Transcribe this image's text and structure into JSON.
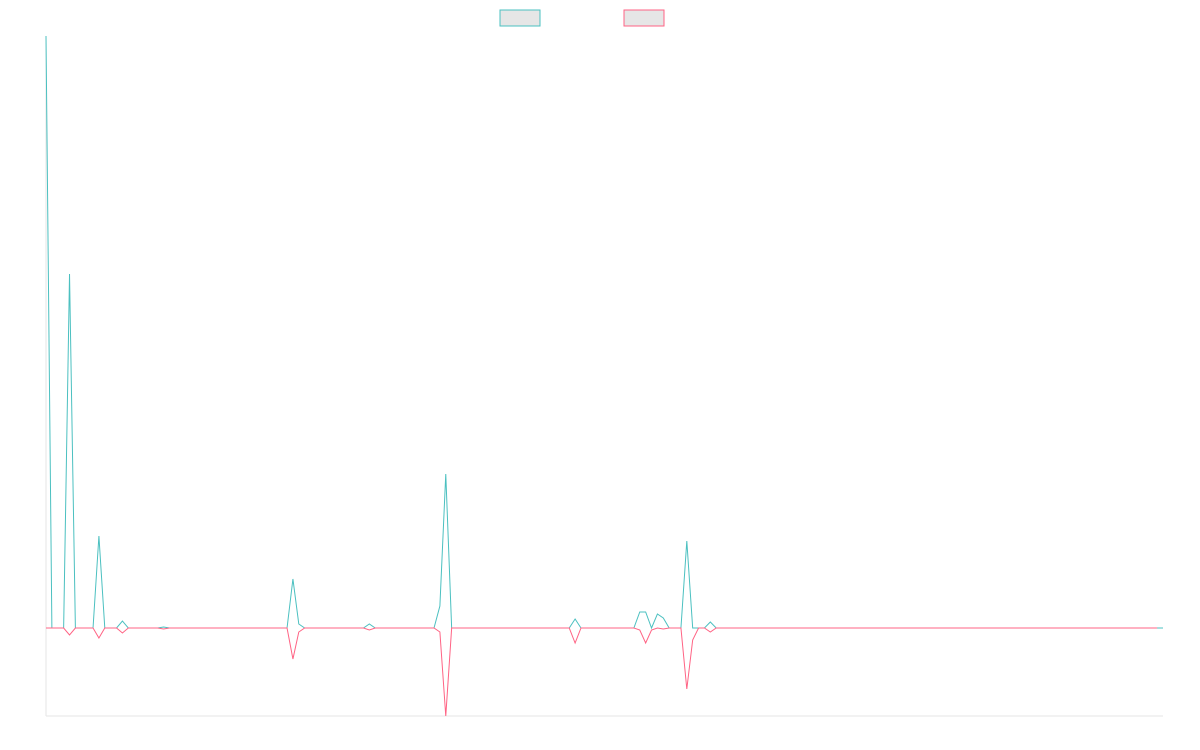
{
  "chart_data": {
    "type": "line",
    "title": "",
    "xlabel": "",
    "ylabel": "",
    "grid": false,
    "legend": {
      "placement": "top-center",
      "entries": [
        {
          "name": "",
          "color": "#4bc0c0",
          "fill": "#e6e6e6"
        },
        {
          "name": "",
          "color": "#ff6384",
          "fill": "#e6e6e6"
        }
      ]
    },
    "ylim": [
      -88,
      592
    ],
    "series": [
      {
        "name": "",
        "color": "#4bc0c0",
        "values": [
          592,
          0,
          0,
          0,
          354,
          0,
          0,
          0,
          0,
          92,
          0,
          0,
          0,
          7,
          0,
          0,
          0,
          0,
          0,
          0,
          1,
          0,
          0,
          0,
          0,
          0,
          0,
          0,
          0,
          0,
          0,
          0,
          0,
          0,
          0,
          0,
          0,
          0,
          0,
          0,
          0,
          0,
          49,
          4,
          0,
          0,
          0,
          0,
          0,
          0,
          0,
          0,
          0,
          0,
          0,
          4,
          0,
          0,
          0,
          0,
          0,
          0,
          0,
          0,
          0,
          0,
          0,
          22,
          154,
          0,
          0,
          0,
          0,
          0,
          0,
          0,
          0,
          0,
          0,
          0,
          0,
          0,
          0,
          0,
          0,
          0,
          0,
          0,
          0,
          0,
          9,
          0,
          0,
          0,
          0,
          0,
          0,
          0,
          0,
          0,
          0,
          16,
          16,
          0,
          14,
          10,
          0,
          0,
          0,
          87,
          0,
          0,
          0,
          6,
          0,
          0,
          0,
          0,
          0,
          0,
          0,
          0,
          0,
          0,
          0,
          0,
          0,
          0,
          0,
          0,
          0,
          0,
          0,
          0,
          0,
          0,
          0,
          0,
          0,
          0,
          0,
          0,
          0,
          0,
          0,
          0,
          0,
          0,
          0,
          0,
          0,
          0,
          0,
          0,
          0,
          0,
          0,
          0,
          0,
          0,
          0,
          0,
          0,
          0,
          0,
          0,
          0,
          0,
          0,
          0,
          0,
          0,
          0,
          0,
          0,
          0,
          0,
          0,
          0,
          0,
          0,
          0,
          0,
          0,
          0,
          0,
          0,
          0,
          0,
          0,
          0
        ]
      },
      {
        "name": "",
        "color": "#ff6384",
        "values": [
          0,
          0,
          0,
          0,
          -7,
          0,
          0,
          0,
          0,
          -10,
          0,
          0,
          0,
          -5,
          0,
          0,
          0,
          0,
          0,
          0,
          -1,
          0,
          0,
          0,
          0,
          0,
          0,
          0,
          0,
          0,
          0,
          0,
          0,
          0,
          0,
          0,
          0,
          0,
          0,
          0,
          0,
          0,
          -31,
          -4,
          0,
          0,
          0,
          0,
          0,
          0,
          0,
          0,
          0,
          0,
          0,
          -2,
          0,
          0,
          0,
          0,
          0,
          0,
          0,
          0,
          0,
          0,
          0,
          -4,
          -88,
          0,
          0,
          0,
          0,
          0,
          0,
          0,
          0,
          0,
          0,
          0,
          0,
          0,
          0,
          0,
          0,
          0,
          0,
          0,
          0,
          0,
          -15,
          0,
          0,
          0,
          0,
          0,
          0,
          0,
          0,
          0,
          0,
          -2,
          -15,
          -2,
          0,
          -1,
          0,
          0,
          0,
          -61,
          -12,
          0,
          0,
          -4,
          0,
          0,
          0,
          0,
          0,
          0,
          0,
          0,
          0,
          0,
          0,
          0,
          0,
          0,
          0,
          0,
          0,
          0,
          0,
          0,
          0,
          0,
          0,
          0,
          0,
          0,
          0,
          0,
          0,
          0,
          0,
          0,
          0,
          0,
          0,
          0,
          0,
          0,
          0,
          0,
          0,
          0,
          0,
          0,
          0,
          0,
          0,
          0,
          0,
          0,
          0,
          0,
          0,
          0,
          0,
          0,
          0,
          0,
          0,
          0,
          0,
          0,
          0,
          0,
          0,
          0,
          0,
          0,
          0,
          0,
          0,
          0,
          0,
          0,
          0,
          0
        ]
      }
    ]
  }
}
